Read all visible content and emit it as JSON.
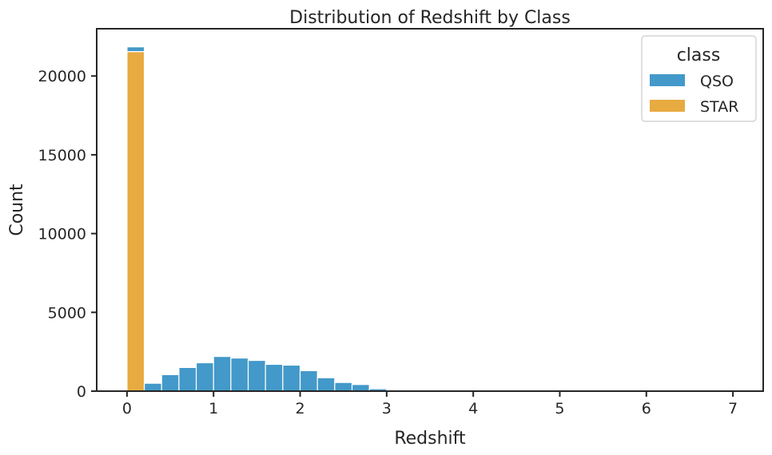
{
  "chart_data": {
    "type": "bar",
    "title": "Distribution of Redshift by Class",
    "xlabel": "Redshift",
    "ylabel": "Count",
    "xlim": [
      -0.35,
      7.35
    ],
    "ylim": [
      0,
      23000
    ],
    "x_ticks": [
      0,
      1,
      2,
      3,
      4,
      5,
      6,
      7
    ],
    "y_ticks": [
      0,
      5000,
      10000,
      15000,
      20000
    ],
    "grid": false,
    "stacked": true,
    "bin_width": 0.2,
    "bin_starts": [
      0.0,
      0.2,
      0.4,
      0.6,
      0.8,
      1.0,
      1.2,
      1.4,
      1.6,
      1.8,
      2.0,
      2.2,
      2.4,
      2.6,
      2.8,
      3.0,
      3.2,
      3.4,
      3.6,
      3.8,
      4.0,
      4.2,
      4.4,
      4.6,
      4.8,
      5.0,
      5.2,
      5.4,
      5.6,
      5.8,
      6.0,
      6.2,
      6.4,
      6.6,
      6.8
    ],
    "series": [
      {
        "name": "STAR",
        "color": "#e8ab41",
        "values": [
          21550,
          0,
          0,
          0,
          0,
          0,
          0,
          0,
          0,
          0,
          0,
          0,
          0,
          0,
          0,
          0,
          0,
          0,
          0,
          0,
          0,
          0,
          0,
          0,
          0,
          0,
          0,
          0,
          0,
          0,
          0,
          0,
          0,
          0,
          0
        ]
      },
      {
        "name": "QSO",
        "color": "#4399c9",
        "values": [
          300,
          500,
          1050,
          1500,
          1800,
          2200,
          2100,
          1950,
          1700,
          1650,
          1300,
          850,
          550,
          420,
          150,
          70,
          40,
          25,
          15,
          10,
          8,
          6,
          5,
          4,
          3,
          3,
          2,
          2,
          2,
          1,
          1,
          1,
          1,
          1,
          1
        ]
      }
    ],
    "legend": {
      "title": "class",
      "position": "top-right",
      "entries": [
        {
          "label": "QSO",
          "color": "#4399c9"
        },
        {
          "label": "STAR",
          "color": "#e8ab41"
        }
      ]
    }
  }
}
